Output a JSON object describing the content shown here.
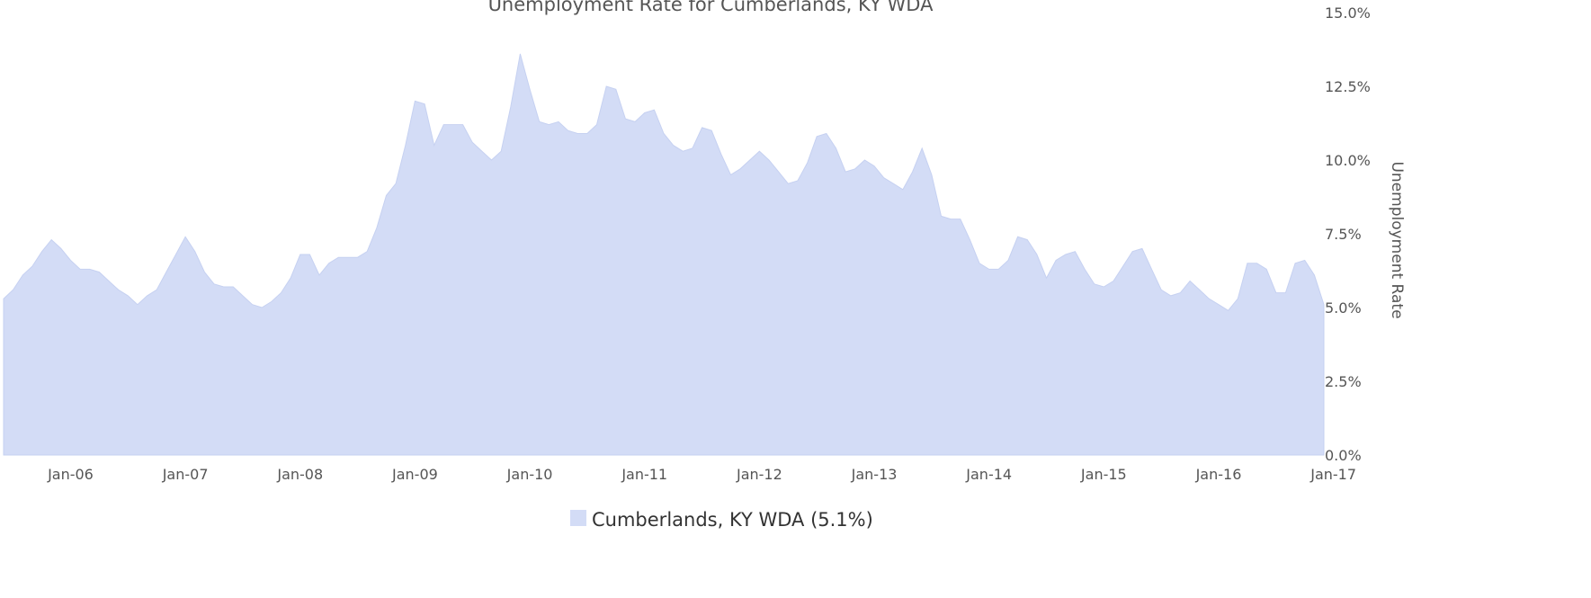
{
  "chart_data": {
    "type": "area",
    "title": "Unemployment Rate for Cumberlands, KY WDA",
    "ylabel": "Unemployment Rate",
    "xlabel": "",
    "ylim": [
      0,
      15
    ],
    "y_ticks": [
      "0.0%",
      "2.5%",
      "5.0%",
      "7.5%",
      "10.0%",
      "12.5%",
      "15.0%"
    ],
    "x_ticks": [
      "Jan-06",
      "Jan-07",
      "Jan-08",
      "Jan-09",
      "Jan-10",
      "Jan-11",
      "Jan-12",
      "Jan-13",
      "Jan-14",
      "Jan-15",
      "Jan-16",
      "Jan-17"
    ],
    "legend": "top-bottom-center",
    "legend_label": "Cumberlands, KY WDA (5.1%)",
    "color": "#d3dcf6",
    "grid": false,
    "x_start": "Jun-05",
    "x_end": "Jun-17",
    "series": [
      {
        "name": "Cumberlands, KY WDA",
        "values": [
          5.3,
          5.6,
          6.1,
          6.4,
          6.9,
          7.3,
          7.0,
          6.6,
          6.3,
          6.3,
          6.2,
          5.9,
          5.6,
          5.4,
          5.1,
          5.4,
          5.6,
          6.2,
          6.8,
          7.4,
          6.9,
          6.2,
          5.8,
          5.7,
          5.7,
          5.4,
          5.1,
          5.0,
          5.2,
          5.5,
          6.0,
          6.8,
          6.8,
          6.1,
          6.5,
          6.7,
          6.7,
          6.7,
          6.9,
          7.7,
          8.8,
          9.2,
          10.5,
          12.0,
          11.9,
          10.5,
          11.2,
          11.2,
          11.2,
          10.6,
          10.3,
          10.0,
          10.3,
          11.8,
          13.6,
          12.4,
          11.3,
          11.2,
          11.3,
          11.0,
          10.9,
          10.9,
          11.2,
          12.5,
          12.4,
          11.4,
          11.3,
          11.6,
          11.7,
          10.9,
          10.5,
          10.3,
          10.4,
          11.1,
          11.0,
          10.2,
          9.5,
          9.7,
          10.0,
          10.3,
          10.0,
          9.6,
          9.2,
          9.3,
          9.9,
          10.8,
          10.9,
          10.4,
          9.6,
          9.7,
          10.0,
          9.8,
          9.4,
          9.2,
          9.0,
          9.6,
          10.4,
          9.5,
          8.1,
          8.0,
          8.0,
          7.3,
          6.5,
          6.3,
          6.3,
          6.6,
          7.4,
          7.3,
          6.8,
          6.0,
          6.6,
          6.8,
          6.9,
          6.3,
          5.8,
          5.7,
          5.9,
          6.4,
          6.9,
          7.0,
          6.3,
          5.6,
          5.4,
          5.5,
          5.9,
          5.6,
          5.3,
          5.1,
          4.9,
          5.3,
          6.5,
          6.5,
          6.3,
          5.5,
          5.5,
          6.5,
          6.6,
          6.1,
          5.1
        ]
      }
    ]
  }
}
